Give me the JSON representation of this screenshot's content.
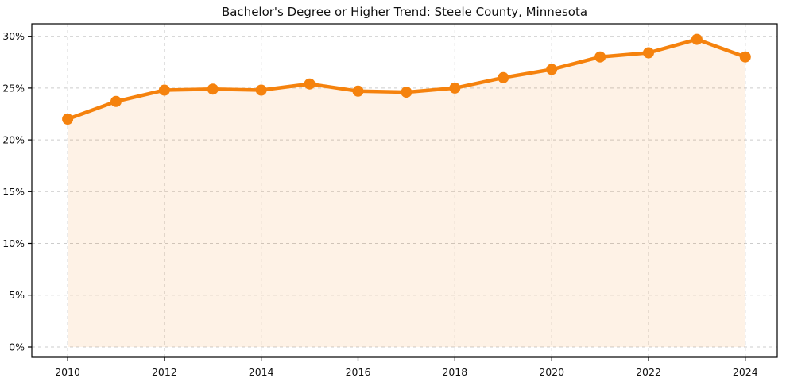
{
  "chart_data": {
    "type": "line",
    "title": "Bachelor's Degree or Higher Trend: Steele County, Minnesota",
    "series_name": "Bachelor's Degree or Higher (%)",
    "x": [
      2010,
      2011,
      2012,
      2013,
      2014,
      2015,
      2016,
      2017,
      2018,
      2019,
      2020,
      2021,
      2022,
      2023,
      2024
    ],
    "values": [
      22.0,
      23.7,
      24.8,
      24.9,
      24.8,
      25.4,
      24.7,
      24.6,
      25.0,
      26.0,
      26.8,
      28.0,
      28.4,
      29.7,
      28.0
    ],
    "xlabel": "",
    "ylabel": "",
    "xlim": [
      2009.26,
      2024.66
    ],
    "ylim": [
      -1.0,
      31.2
    ],
    "xticks": [
      2010,
      2012,
      2014,
      2016,
      2018,
      2020,
      2022,
      2024
    ],
    "xtick_labels": [
      "2010",
      "2012",
      "2014",
      "2016",
      "2018",
      "2020",
      "2022",
      "2024"
    ],
    "yticks": [
      0,
      5,
      10,
      15,
      20,
      25,
      30
    ],
    "ytick_labels": [
      "0%",
      "5%",
      "10%",
      "15%",
      "20%",
      "25%",
      "30%"
    ],
    "grid": true,
    "grid_style": "dashed",
    "legend": false,
    "marker": "circle",
    "area_fill": true,
    "colors": {
      "line": "#f5820d",
      "marker": "#f5820d",
      "area": "rgba(245, 130, 13, 0.10)",
      "grid": "#cccccc",
      "spine": "#000000",
      "text": "#111111",
      "background": "#ffffff"
    }
  }
}
